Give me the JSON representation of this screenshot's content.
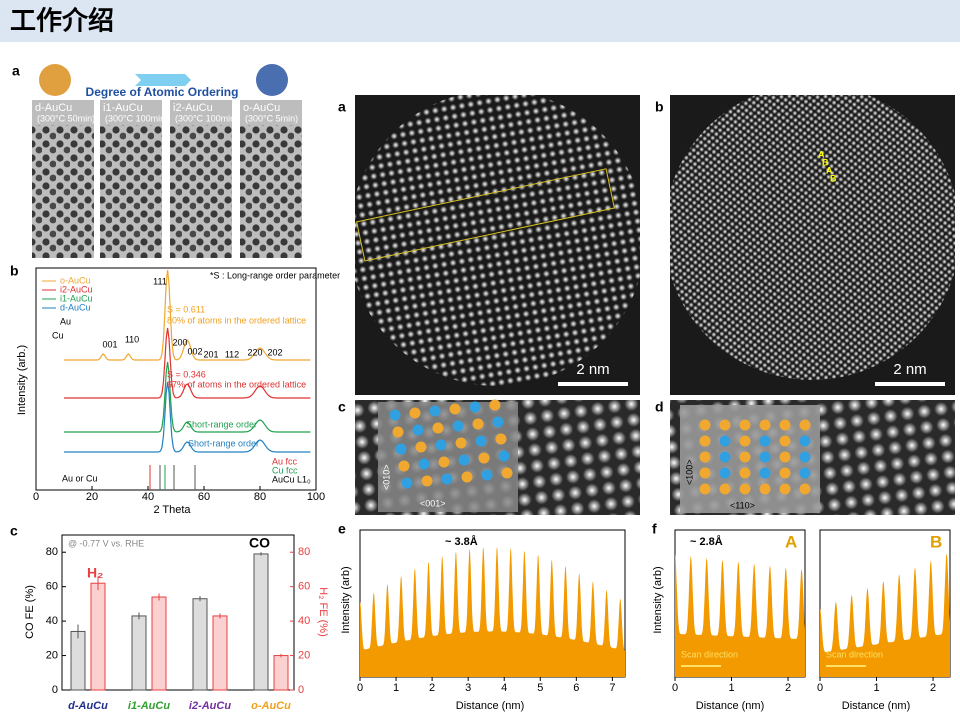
{
  "header": {
    "title": "工作介绍"
  },
  "left": {
    "panel_a": {
      "label": "a",
      "banner": "Degree of Atomic Ordering",
      "samples": [
        {
          "name": "d-AuCu",
          "condition": "(300°C 50min)"
        },
        {
          "name": "i1-AuCu",
          "condition": "(300°C 100min)"
        },
        {
          "name": "i2-AuCu",
          "condition": "(300°C 100min)"
        },
        {
          "name": "o-AuCu",
          "condition": "(300°C 5min)"
        }
      ]
    },
    "panel_b": {
      "label": "b",
      "note": "*S : Long-range order parameter",
      "legend": [
        "o-AuCu",
        "i2-AuCu",
        "i1-AuCu",
        "d-AuCu"
      ],
      "peaks": [
        "001",
        "110",
        "111",
        "200",
        "002",
        "201",
        "112",
        "220",
        "202"
      ],
      "s_high": "S = 0.611",
      "s_high_note": "80% of atoms in the ordered lattice",
      "s_low": "S = 0.346",
      "s_low_note": "67% of atoms in the ordered lattice",
      "short_range": [
        "Short-range order",
        "Short-range order"
      ],
      "refs": [
        "Au fcc",
        "Cu fcc",
        "AuCu L1₀"
      ],
      "atoms": [
        "Au",
        "Cu",
        "Au or Cu"
      ],
      "y_label": "Intensity (arb.)",
      "x_label": "2 Theta",
      "xlim": [
        0,
        100
      ],
      "xticks": [
        0,
        20,
        40,
        60,
        80,
        100
      ]
    },
    "panel_c": {
      "label": "c",
      "note": "@ -0.77 V vs. RHE",
      "categories": [
        "d-AuCu",
        "i1-AuCu",
        "i2-AuCu",
        "o-AuCu"
      ],
      "series": [
        {
          "name": "CO",
          "color": "#555555",
          "values": [
            34,
            43,
            53,
            79
          ],
          "errors": [
            4,
            2,
            1.5,
            1
          ]
        },
        {
          "name": "H₂",
          "color": "#e84040",
          "values": [
            62,
            54,
            43,
            20
          ],
          "errors": [
            4,
            2,
            1.5,
            1
          ]
        }
      ],
      "ylim": [
        0,
        90
      ],
      "yticks": [
        0,
        20,
        40,
        60,
        80
      ],
      "y_label": "CO FE (%)",
      "y2_label": "H₂ FE (%)"
    }
  },
  "right": {
    "panel_a": {
      "label": "a",
      "scale": "2 nm"
    },
    "panel_b": {
      "label": "b",
      "scale": "2 nm",
      "sites": [
        "A",
        "B",
        "A",
        "B"
      ]
    },
    "panel_c": {
      "label": "c",
      "dirs": [
        "<001>",
        "<010>"
      ]
    },
    "panel_d": {
      "label": "d",
      "dirs": [
        "<110>",
        "<100>"
      ]
    },
    "panel_e": {
      "label": "e",
      "spacing": "~ 3.8Å",
      "y_label": "Intensity (arb)",
      "x_label": "Distance (nm)",
      "xlim": [
        0,
        7.35
      ],
      "xticks": [
        0,
        1,
        2,
        3,
        4,
        5,
        6,
        7
      ]
    },
    "panel_f": {
      "label": "f",
      "spacing": "~ 2.8Å",
      "y_label": "Intensity (arb)",
      "x_label": "Distance (nm)",
      "xlim": [
        0,
        2.3
      ],
      "xticks": [
        0,
        1,
        2
      ],
      "profiles": [
        {
          "name": "A",
          "scan": "Scan direction"
        },
        {
          "name": "B",
          "scan": "Scan direction"
        }
      ]
    }
  }
}
